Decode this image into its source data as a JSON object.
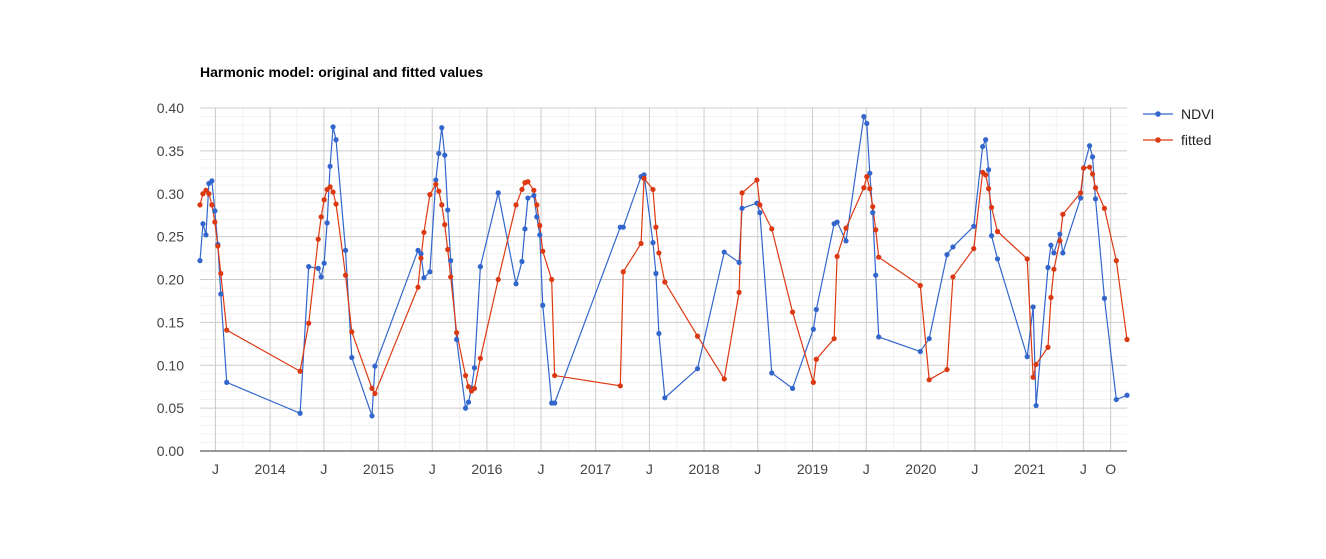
{
  "chart_data": {
    "type": "line",
    "title": "Harmonic model: original and fitted values",
    "ylim": [
      0,
      0.4
    ],
    "y_ticks": [
      "0.00",
      "0.05",
      "0.10",
      "0.15",
      "0.20",
      "0.25",
      "0.30",
      "0.35",
      "0.40"
    ],
    "x_ticks": [
      {
        "date": "2013-07-01",
        "label": "J"
      },
      {
        "date": "2014-01-01",
        "label": "2014"
      },
      {
        "date": "2014-07-01",
        "label": "J"
      },
      {
        "date": "2015-01-01",
        "label": "2015"
      },
      {
        "date": "2015-07-01",
        "label": "J"
      },
      {
        "date": "2016-01-01",
        "label": "2016"
      },
      {
        "date": "2016-07-01",
        "label": "J"
      },
      {
        "date": "2017-01-01",
        "label": "2017"
      },
      {
        "date": "2017-07-01",
        "label": "J"
      },
      {
        "date": "2018-01-01",
        "label": "2018"
      },
      {
        "date": "2018-07-01",
        "label": "J"
      },
      {
        "date": "2019-01-01",
        "label": "2019"
      },
      {
        "date": "2019-07-01",
        "label": "J"
      },
      {
        "date": "2020-01-01",
        "label": "2020"
      },
      {
        "date": "2020-07-01",
        "label": "J"
      },
      {
        "date": "2021-01-01",
        "label": "2021"
      },
      {
        "date": "2021-07-01",
        "label": "J"
      },
      {
        "date": "2021-10-01",
        "label": "O"
      }
    ],
    "xlim": [
      "2013-05-10",
      "2021-11-25"
    ],
    "grid": true,
    "legend_position": "right",
    "series": [
      {
        "name": "NDVI",
        "color": "#3366cc",
        "points": [
          [
            "2013-05-10",
            0.222
          ],
          [
            "2013-05-20",
            0.265
          ],
          [
            "2013-05-30",
            0.252
          ],
          [
            "2013-06-09",
            0.312
          ],
          [
            "2013-06-19",
            0.315
          ],
          [
            "2013-06-29",
            0.28
          ],
          [
            "2013-07-09",
            0.241
          ],
          [
            "2013-07-19",
            0.183
          ],
          [
            "2013-08-08",
            0.08
          ],
          [
            "2014-04-12",
            0.044
          ],
          [
            "2014-05-11",
            0.215
          ],
          [
            "2014-06-12",
            0.213
          ],
          [
            "2014-06-22",
            0.203
          ],
          [
            "2014-07-02",
            0.219
          ],
          [
            "2014-07-12",
            0.266
          ],
          [
            "2014-07-22",
            0.332
          ],
          [
            "2014-08-01",
            0.378
          ],
          [
            "2014-08-11",
            0.363
          ],
          [
            "2014-09-12",
            0.234
          ],
          [
            "2014-10-03",
            0.109
          ],
          [
            "2014-12-10",
            0.041
          ],
          [
            "2014-12-20",
            0.099
          ],
          [
            "2015-05-14",
            0.234
          ],
          [
            "2015-05-24",
            0.23
          ],
          [
            "2015-06-03",
            0.202
          ],
          [
            "2015-06-23",
            0.209
          ],
          [
            "2015-07-13",
            0.316
          ],
          [
            "2015-07-23",
            0.347
          ],
          [
            "2015-08-02",
            0.377
          ],
          [
            "2015-08-12",
            0.345
          ],
          [
            "2015-08-22",
            0.281
          ],
          [
            "2015-09-01",
            0.222
          ],
          [
            "2015-09-21",
            0.13
          ],
          [
            "2015-10-21",
            0.05
          ],
          [
            "2015-10-31",
            0.057
          ],
          [
            "2015-11-10",
            0.073
          ],
          [
            "2015-11-20",
            0.097
          ],
          [
            "2015-12-10",
            0.215
          ],
          [
            "2016-02-08",
            0.301
          ],
          [
            "2016-04-08",
            0.195
          ],
          [
            "2016-04-28",
            0.221
          ],
          [
            "2016-05-08",
            0.259
          ],
          [
            "2016-05-18",
            0.295
          ],
          [
            "2016-06-07",
            0.298
          ],
          [
            "2016-06-17",
            0.273
          ],
          [
            "2016-06-27",
            0.252
          ],
          [
            "2016-07-07",
            0.17
          ],
          [
            "2016-08-06",
            0.056
          ],
          [
            "2016-08-16",
            0.056
          ],
          [
            "2017-03-25",
            0.261
          ],
          [
            "2017-04-04",
            0.261
          ],
          [
            "2017-06-03",
            0.32
          ],
          [
            "2017-06-13",
            0.322
          ],
          [
            "2017-07-13",
            0.243
          ],
          [
            "2017-07-23",
            0.207
          ],
          [
            "2017-08-02",
            0.137
          ],
          [
            "2017-08-22",
            0.062
          ],
          [
            "2017-12-10",
            0.096
          ],
          [
            "2018-03-10",
            0.232
          ],
          [
            "2018-04-29",
            0.22
          ],
          [
            "2018-05-09",
            0.283
          ],
          [
            "2018-06-28",
            0.289
          ],
          [
            "2018-07-08",
            0.278
          ],
          [
            "2018-08-17",
            0.091
          ],
          [
            "2018-10-26",
            0.073
          ],
          [
            "2019-01-04",
            0.142
          ],
          [
            "2019-01-14",
            0.165
          ],
          [
            "2019-03-15",
            0.265
          ],
          [
            "2019-03-25",
            0.267
          ],
          [
            "2019-04-24",
            0.245
          ],
          [
            "2019-06-23",
            0.39
          ],
          [
            "2019-07-03",
            0.382
          ],
          [
            "2019-07-13",
            0.324
          ],
          [
            "2019-07-23",
            0.278
          ],
          [
            "2019-08-02",
            0.205
          ],
          [
            "2019-08-12",
            0.133
          ],
          [
            "2019-12-30",
            0.116
          ],
          [
            "2020-01-29",
            0.131
          ],
          [
            "2020-03-29",
            0.229
          ],
          [
            "2020-04-18",
            0.238
          ],
          [
            "2020-06-27",
            0.262
          ],
          [
            "2020-07-27",
            0.355
          ],
          [
            "2020-08-06",
            0.363
          ],
          [
            "2020-08-16",
            0.328
          ],
          [
            "2020-08-26",
            0.251
          ],
          [
            "2020-09-15",
            0.224
          ],
          [
            "2020-12-24",
            0.11
          ],
          [
            "2021-01-13",
            0.168
          ],
          [
            "2021-01-23",
            0.053
          ],
          [
            "2021-03-04",
            0.214
          ],
          [
            "2021-03-14",
            0.24
          ],
          [
            "2021-03-24",
            0.231
          ],
          [
            "2021-04-13",
            0.253
          ],
          [
            "2021-04-23",
            0.231
          ],
          [
            "2021-06-22",
            0.295
          ],
          [
            "2021-07-02",
            0.33
          ],
          [
            "2021-07-22",
            0.356
          ],
          [
            "2021-08-01",
            0.343
          ],
          [
            "2021-08-11",
            0.294
          ],
          [
            "2021-09-10",
            0.178
          ],
          [
            "2021-10-20",
            0.06
          ],
          [
            "2021-11-25",
            0.065
          ]
        ]
      },
      {
        "name": "fitted",
        "color": "#dc3912",
        "points": [
          [
            "2013-05-10",
            0.287
          ],
          [
            "2013-05-20",
            0.3
          ],
          [
            "2013-05-30",
            0.304
          ],
          [
            "2013-06-09",
            0.3
          ],
          [
            "2013-06-19",
            0.287
          ],
          [
            "2013-06-29",
            0.267
          ],
          [
            "2013-07-09",
            0.239
          ],
          [
            "2013-07-19",
            0.207
          ],
          [
            "2013-08-08",
            0.141
          ],
          [
            "2014-04-12",
            0.093
          ],
          [
            "2014-05-11",
            0.149
          ],
          [
            "2014-06-12",
            0.247
          ],
          [
            "2014-06-22",
            0.273
          ],
          [
            "2014-07-02",
            0.293
          ],
          [
            "2014-07-12",
            0.305
          ],
          [
            "2014-07-22",
            0.308
          ],
          [
            "2014-08-01",
            0.302
          ],
          [
            "2014-08-11",
            0.288
          ],
          [
            "2014-09-12",
            0.205
          ],
          [
            "2014-10-03",
            0.139
          ],
          [
            "2014-12-10",
            0.073
          ],
          [
            "2014-12-20",
            0.067
          ],
          [
            "2015-05-14",
            0.191
          ],
          [
            "2015-05-24",
            0.225
          ],
          [
            "2015-06-03",
            0.255
          ],
          [
            "2015-06-23",
            0.299
          ],
          [
            "2015-07-13",
            0.311
          ],
          [
            "2015-07-23",
            0.303
          ],
          [
            "2015-08-02",
            0.287
          ],
          [
            "2015-08-12",
            0.264
          ],
          [
            "2015-08-22",
            0.235
          ],
          [
            "2015-09-01",
            0.203
          ],
          [
            "2015-09-21",
            0.138
          ],
          [
            "2015-10-21",
            0.088
          ],
          [
            "2015-10-31",
            0.075
          ],
          [
            "2015-11-10",
            0.07
          ],
          [
            "2015-11-20",
            0.073
          ],
          [
            "2015-12-10",
            0.108
          ],
          [
            "2016-02-08",
            0.2
          ],
          [
            "2016-04-08",
            0.287
          ],
          [
            "2016-04-28",
            0.305
          ],
          [
            "2016-05-08",
            0.313
          ],
          [
            "2016-05-18",
            0.314
          ],
          [
            "2016-06-07",
            0.304
          ],
          [
            "2016-06-17",
            0.287
          ],
          [
            "2016-06-27",
            0.263
          ],
          [
            "2016-07-07",
            0.233
          ],
          [
            "2016-08-06",
            0.2
          ],
          [
            "2016-08-16",
            0.088
          ],
          [
            "2017-03-25",
            0.076
          ],
          [
            "2017-04-04",
            0.209
          ],
          [
            "2017-06-03",
            0.242
          ],
          [
            "2017-06-13",
            0.318
          ],
          [
            "2017-07-13",
            0.305
          ],
          [
            "2017-07-23",
            0.261
          ],
          [
            "2017-08-02",
            0.231
          ],
          [
            "2017-08-22",
            0.197
          ],
          [
            "2017-12-10",
            0.134
          ],
          [
            "2018-03-10",
            0.084
          ],
          [
            "2018-04-29",
            0.185
          ],
          [
            "2018-05-09",
            0.301
          ],
          [
            "2018-06-28",
            0.316
          ],
          [
            "2018-07-08",
            0.287
          ],
          [
            "2018-08-17",
            0.259
          ],
          [
            "2018-10-26",
            0.162
          ],
          [
            "2019-01-04",
            0.08
          ],
          [
            "2019-01-14",
            0.107
          ],
          [
            "2019-03-15",
            0.131
          ],
          [
            "2019-03-25",
            0.227
          ],
          [
            "2019-04-24",
            0.26
          ],
          [
            "2019-06-23",
            0.307
          ],
          [
            "2019-07-03",
            0.32
          ],
          [
            "2019-07-13",
            0.306
          ],
          [
            "2019-07-23",
            0.285
          ],
          [
            "2019-08-02",
            0.258
          ],
          [
            "2019-08-12",
            0.226
          ],
          [
            "2019-12-30",
            0.193
          ],
          [
            "2020-01-29",
            0.083
          ],
          [
            "2020-03-29",
            0.095
          ],
          [
            "2020-04-18",
            0.203
          ],
          [
            "2020-06-27",
            0.236
          ],
          [
            "2020-07-27",
            0.325
          ],
          [
            "2020-08-06",
            0.322
          ],
          [
            "2020-08-16",
            0.306
          ],
          [
            "2020-08-26",
            0.284
          ],
          [
            "2020-09-15",
            0.256
          ],
          [
            "2020-12-24",
            0.224
          ],
          [
            "2021-01-13",
            0.086
          ],
          [
            "2021-01-23",
            0.101
          ],
          [
            "2021-03-04",
            0.121
          ],
          [
            "2021-03-14",
            0.179
          ],
          [
            "2021-03-24",
            0.212
          ],
          [
            "2021-04-13",
            0.245
          ],
          [
            "2021-04-23",
            0.276
          ],
          [
            "2021-06-22",
            0.301
          ],
          [
            "2021-07-02",
            0.33
          ],
          [
            "2021-07-22",
            0.331
          ],
          [
            "2021-08-01",
            0.323
          ],
          [
            "2021-08-11",
            0.307
          ],
          [
            "2021-09-10",
            0.283
          ],
          [
            "2021-10-20",
            0.222
          ],
          [
            "2021-11-25",
            0.13
          ]
        ]
      }
    ]
  }
}
